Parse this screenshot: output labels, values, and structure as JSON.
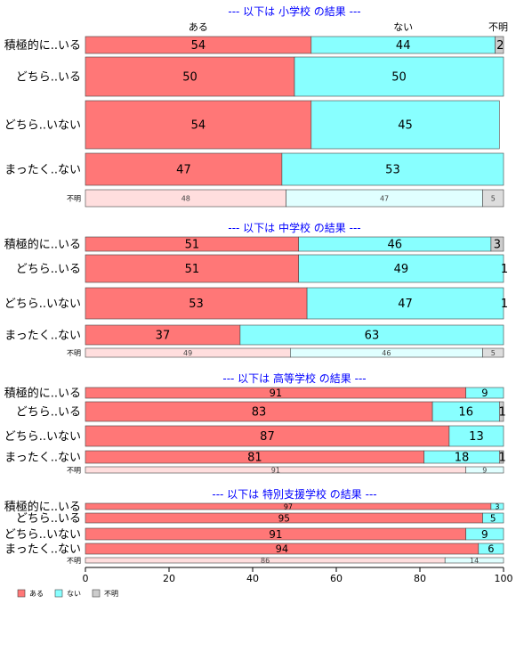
{
  "chart_data": {
    "type": "bar",
    "orientation": "horizontal",
    "stacked": "percent",
    "xlim": [
      0,
      100
    ],
    "xticks": [
      "0",
      "20",
      "40",
      "60",
      "80",
      "100"
    ],
    "grid": false,
    "legend_position": "bottom-left",
    "series": [
      {
        "name": "ある",
        "color": "#ff7777"
      },
      {
        "name": "ない",
        "color": "#88ffff"
      },
      {
        "name": "不明",
        "color": "#cccccc"
      }
    ],
    "column_labels": [
      "ある",
      "ない",
      "不明"
    ],
    "panels": [
      {
        "title": "--- 以下は 小学校 の結果 ---",
        "rows": [
          {
            "label": "積極的に..いる",
            "values": [
              54,
              44,
              2
            ]
          },
          {
            "label": "どちら..いる",
            "values": [
              50,
              50,
              0
            ]
          },
          {
            "label": "どちら..いない",
            "values": [
              54,
              45,
              0
            ]
          },
          {
            "label": "まったく..ない",
            "values": [
              47,
              53,
              0
            ]
          },
          {
            "label": "不明",
            "values": [
              48,
              47,
              5
            ],
            "faded": true
          }
        ]
      },
      {
        "title": "--- 以下は 中学校 の結果 ---",
        "rows": [
          {
            "label": "積極的に..いる",
            "values": [
              51,
              46,
              3
            ]
          },
          {
            "label": "どちら..いる",
            "values": [
              51,
              49,
              1
            ]
          },
          {
            "label": "どちら..いない",
            "values": [
              53,
              47,
              1
            ]
          },
          {
            "label": "まったく..ない",
            "values": [
              37,
              63,
              0
            ]
          },
          {
            "label": "不明",
            "values": [
              49,
              46,
              5
            ],
            "faded": true
          }
        ]
      },
      {
        "title": "--- 以下は 高等学校 の結果 ---",
        "rows": [
          {
            "label": "積極的に..いる",
            "values": [
              91,
              9,
              0
            ]
          },
          {
            "label": "どちら..いる",
            "values": [
              83,
              16,
              1
            ]
          },
          {
            "label": "どちら..いない",
            "values": [
              87,
              13,
              0
            ]
          },
          {
            "label": "まったく..ない",
            "values": [
              81,
              18,
              1
            ]
          },
          {
            "label": "不明",
            "values": [
              91,
              9,
              0
            ],
            "faded": true
          }
        ]
      },
      {
        "title": "--- 以下は 特別支援学校 の結果 ---",
        "rows": [
          {
            "label": "積極的に..いる",
            "values": [
              97,
              3,
              0
            ]
          },
          {
            "label": "どちら..いる",
            "values": [
              95,
              5,
              0
            ]
          },
          {
            "label": "どちら..いない",
            "values": [
              91,
              9,
              0
            ]
          },
          {
            "label": "まったく..ない",
            "values": [
              94,
              6,
              0
            ]
          },
          {
            "label": "不明",
            "values": [
              86,
              14,
              0
            ],
            "faded": true
          }
        ]
      }
    ]
  }
}
